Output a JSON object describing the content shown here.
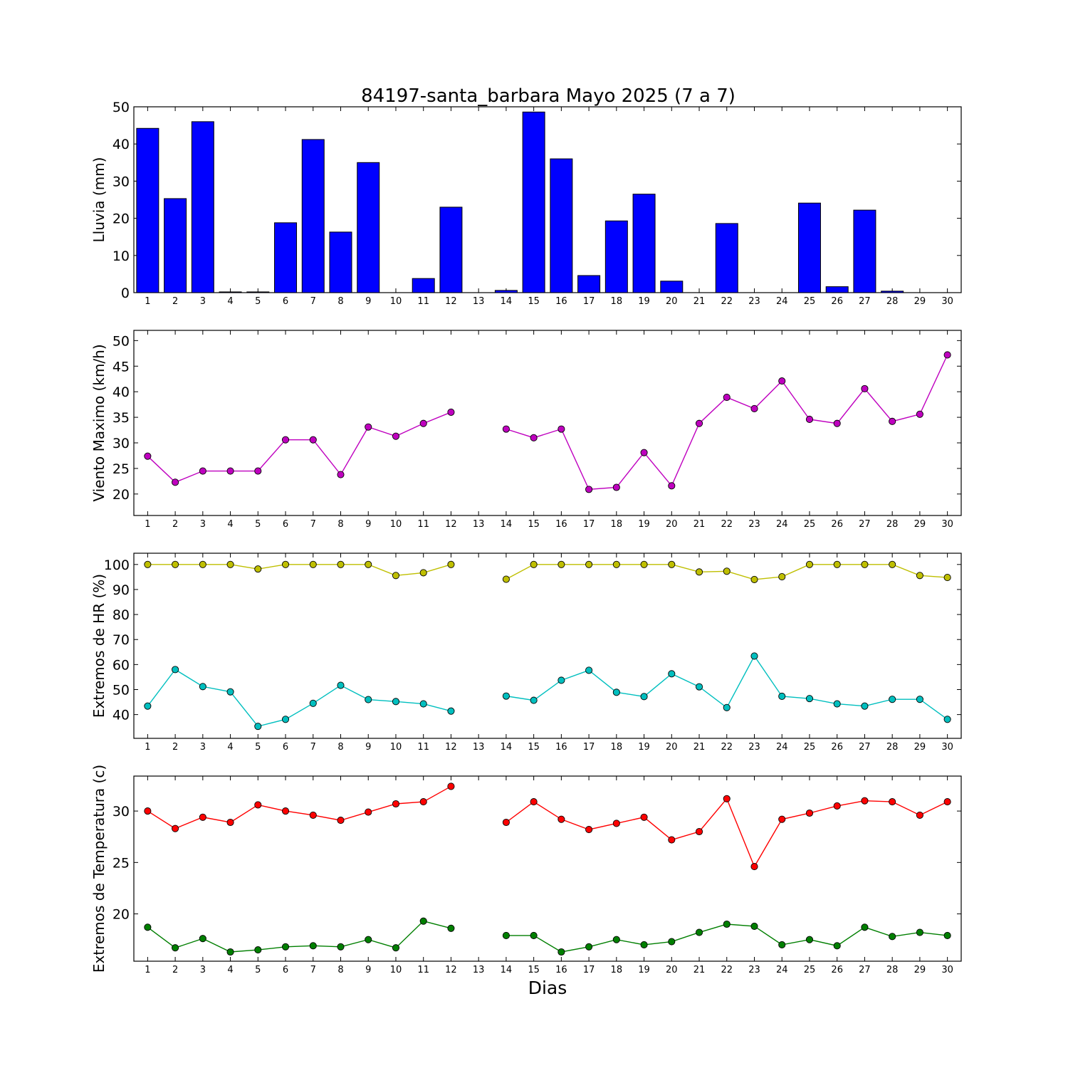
{
  "title": "84197-santa_barbara Mayo 2025  (7 a 7)",
  "xlabel": "Dias",
  "chart_data": [
    {
      "type": "bar",
      "ylabel": "Lluvia (mm)",
      "ylim": [
        0,
        50
      ],
      "yticks": [
        0,
        10,
        20,
        30,
        40,
        50
      ],
      "categories": [
        "1",
        "2",
        "3",
        "4",
        "5",
        "6",
        "7",
        "8",
        "9",
        "10",
        "11",
        "12",
        "13",
        "14",
        "15",
        "16",
        "17",
        "18",
        "19",
        "20",
        "21",
        "22",
        "23",
        "24",
        "25",
        "26",
        "27",
        "28",
        "29",
        "30"
      ],
      "values": [
        44.2,
        25.3,
        46.0,
        0.2,
        0.2,
        18.8,
        41.2,
        16.3,
        35.0,
        0,
        3.8,
        23.0,
        0,
        0.6,
        48.6,
        36.0,
        4.6,
        19.3,
        26.5,
        3.1,
        0,
        18.6,
        0,
        0,
        24.1,
        1.6,
        22.2,
        0.4,
        0,
        0
      ],
      "colors": {
        "bar": "#0000ff"
      }
    },
    {
      "type": "line",
      "ylabel": "Viento Maximo (km/h)",
      "ylim": [
        15.8,
        52.0
      ],
      "yticks": [
        20,
        25,
        30,
        35,
        40,
        45,
        50
      ],
      "x": [
        1,
        2,
        3,
        4,
        5,
        6,
        7,
        8,
        9,
        10,
        11,
        12,
        13,
        14,
        15,
        16,
        17,
        18,
        19,
        20,
        21,
        22,
        23,
        24,
        25,
        26,
        27,
        28,
        29,
        30
      ],
      "series": [
        {
          "values": [
            27.4,
            22.3,
            24.5,
            24.5,
            24.5,
            30.6,
            30.6,
            23.8,
            33.1,
            31.3,
            33.8,
            36.0,
            null,
            32.7,
            31.0,
            32.7,
            20.9,
            21.3,
            28.1,
            21.6,
            33.8,
            38.9,
            36.7,
            42.1,
            34.6,
            33.8,
            40.6,
            34.2,
            35.6,
            47.2
          ],
          "color": "#bf00bf"
        }
      ]
    },
    {
      "type": "line",
      "ylabel": "Extremos de HR (%)",
      "ylim": [
        30.5,
        104.5
      ],
      "yticks": [
        40,
        50,
        60,
        70,
        80,
        90,
        100
      ],
      "x": [
        1,
        2,
        3,
        4,
        5,
        6,
        7,
        8,
        9,
        10,
        11,
        12,
        13,
        14,
        15,
        16,
        17,
        18,
        19,
        20,
        21,
        22,
        23,
        24,
        25,
        26,
        27,
        28,
        29,
        30
      ],
      "series": [
        {
          "values": [
            100,
            100,
            100,
            100,
            98.2,
            100,
            100,
            100,
            100,
            95.6,
            96.7,
            100,
            null,
            94.1,
            100,
            100,
            100,
            100,
            100,
            100,
            97.0,
            97.3,
            94.0,
            95.1,
            100,
            100,
            100,
            100,
            95.6,
            94.8
          ],
          "color": "#bfbf00"
        },
        {
          "values": [
            43.4,
            58.0,
            51.2,
            49.1,
            35.3,
            38.1,
            44.5,
            51.7,
            46.0,
            45.2,
            44.3,
            41.4,
            null,
            47.4,
            45.7,
            53.7,
            57.7,
            48.9,
            47.2,
            56.3,
            51.1,
            42.8,
            63.4,
            47.3,
            46.4,
            44.3,
            43.4,
            46.1,
            46.1,
            38.1
          ],
          "color": "#00bfbf"
        }
      ]
    },
    {
      "type": "line",
      "ylabel": "Extremos de Temperatura (c)",
      "ylim": [
        15.4,
        33.4
      ],
      "yticks": [
        20,
        25,
        30
      ],
      "x": [
        1,
        2,
        3,
        4,
        5,
        6,
        7,
        8,
        9,
        10,
        11,
        12,
        13,
        14,
        15,
        16,
        17,
        18,
        19,
        20,
        21,
        22,
        23,
        24,
        25,
        26,
        27,
        28,
        29,
        30
      ],
      "series": [
        {
          "values": [
            30.0,
            28.3,
            29.4,
            28.9,
            30.6,
            30.0,
            29.6,
            29.1,
            29.9,
            30.7,
            30.9,
            32.4,
            null,
            28.9,
            30.9,
            29.2,
            28.2,
            28.8,
            29.4,
            27.2,
            28.0,
            31.2,
            24.6,
            29.2,
            29.8,
            30.5,
            31.0,
            30.9,
            29.6,
            30.9
          ],
          "color": "#ff0000"
        },
        {
          "values": [
            18.7,
            16.7,
            17.6,
            16.3,
            16.5,
            16.8,
            16.9,
            16.8,
            17.5,
            16.7,
            19.3,
            18.6,
            null,
            17.9,
            17.9,
            16.3,
            16.8,
            17.5,
            17.0,
            17.3,
            18.2,
            19.0,
            18.8,
            17.0,
            17.5,
            16.9,
            18.7,
            17.8,
            18.2,
            17.9
          ],
          "color": "#007f00"
        }
      ]
    }
  ]
}
